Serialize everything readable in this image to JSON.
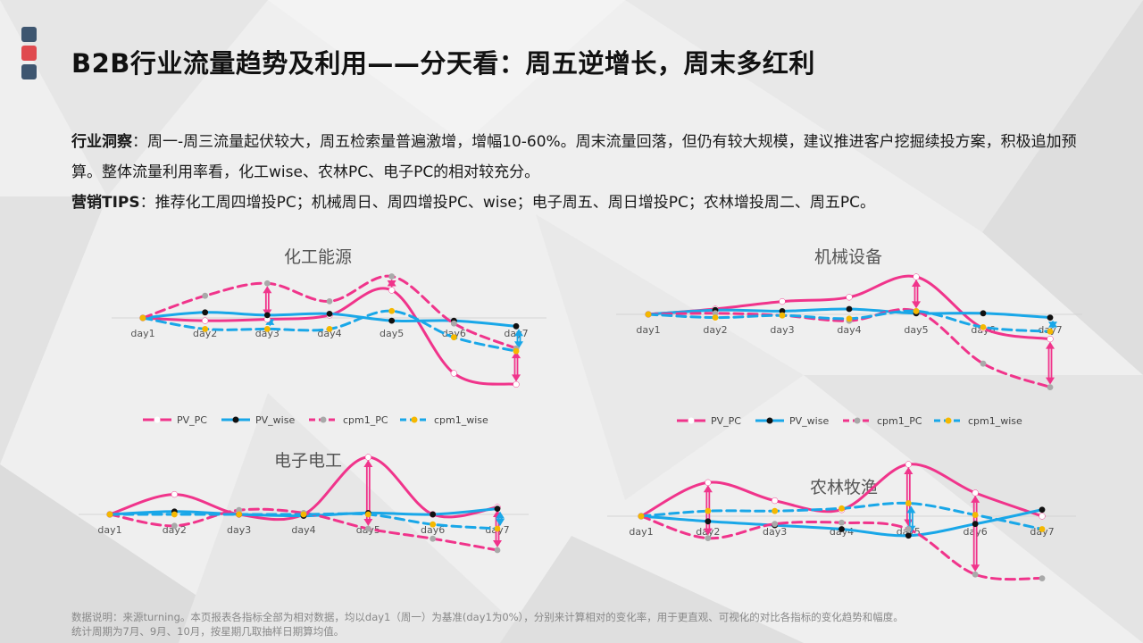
{
  "page": {
    "title": "B2B行业流量趋势及利用——分天看：周五逆增长，周末多红利",
    "logo_colors": [
      "#3e5670",
      "#e04a4f",
      "#3e5670"
    ]
  },
  "insight": {
    "label1": "行业洞察",
    "text1": "：周一-周三流量起伏较大，周五检索量普遍激增，增幅10-60%。周末流量回落，但仍有较大规模，建议推进客户挖掘续投方案，积极追加预算。整体流量利用率看，化工wise、农林PC、电子PC的相对较充分。",
    "label2": "营销TIPS",
    "text2": "：推荐化工周四增投PC；机械周日、周四增投PC、wise；电子周五、周日增投PC；农林增投周二、周五PC。"
  },
  "footnote": {
    "line1": "数据说明：来源turning。本页报表各指标全部为相对数据，均以day1（周一）为基准(day1为0%），分别来计算相对的变化率，用于更直观、可视化的对比各指标的变化趋势和幅度。",
    "line2": "统计周期为7月、9月、10月，按星期几取抽样日期算均值。"
  },
  "series_styles": [
    {
      "name": "PV_PC",
      "color": "#f0348b",
      "dash": false,
      "marker": "#ffffff"
    },
    {
      "name": "PV_wise",
      "color": "#19a7e8",
      "dash": false,
      "marker": "#111111"
    },
    {
      "name": "cpm1_PC",
      "color": "#f0348b",
      "dash": true,
      "marker": "#a9a9a9"
    },
    {
      "name": "cpm1_wise",
      "color": "#19a7e8",
      "dash": true,
      "marker": "#f5b800"
    }
  ],
  "chart_data": [
    {
      "type": "line",
      "title": "化工能源",
      "categories": [
        "day1",
        "day2",
        "day3",
        "day4",
        "day5",
        "day6",
        "day7"
      ],
      "legend_position": "bottom",
      "series": [
        {
          "name": "PV_PC",
          "values": [
            0,
            -2,
            -1,
            2,
            20,
            -40,
            -48
          ]
        },
        {
          "name": "PV_wise",
          "values": [
            0,
            4,
            2,
            3,
            -2,
            -2,
            -6
          ]
        },
        {
          "name": "cpm1_PC",
          "values": [
            0,
            16,
            25,
            12,
            30,
            -4,
            -22
          ]
        },
        {
          "name": "cpm1_wise",
          "values": [
            0,
            -8,
            -8,
            -8,
            5,
            -14,
            -24
          ]
        }
      ]
    },
    {
      "type": "line",
      "title": "机械设备",
      "categories": [
        "day1",
        "day2",
        "day3",
        "day4",
        "day5",
        "day6",
        "day7"
      ],
      "legend_position": "bottom",
      "series": [
        {
          "name": "PV_PC",
          "values": [
            0,
            5,
            12,
            16,
            35,
            -13,
            -23
          ]
        },
        {
          "name": "PV_wise",
          "values": [
            0,
            4,
            3,
            5,
            1,
            1,
            -3
          ]
        },
        {
          "name": "cpm1_PC",
          "values": [
            0,
            1,
            -1,
            -6,
            3,
            -46,
            -68
          ]
        },
        {
          "name": "cpm1_wise",
          "values": [
            0,
            -3,
            -1,
            -4,
            3,
            -12,
            -16
          ]
        }
      ]
    },
    {
      "type": "line",
      "title": "电子电工",
      "categories": [
        "day1",
        "day2",
        "day3",
        "day4",
        "day5",
        "day6",
        "day7"
      ],
      "legend_position": "none",
      "series": [
        {
          "name": "PV_PC",
          "values": [
            0,
            14,
            0,
            0,
            40,
            0,
            5
          ]
        },
        {
          "name": "PV_wise",
          "values": [
            0,
            2,
            0,
            -1,
            1,
            0,
            4
          ]
        },
        {
          "name": "cpm1_PC",
          "values": [
            0,
            -8,
            3,
            1,
            -10,
            -17,
            -25
          ]
        },
        {
          "name": "cpm1_wise",
          "values": [
            0,
            0,
            0,
            0,
            0,
            -7,
            -10
          ]
        }
      ]
    },
    {
      "type": "line",
      "title": "农林牧渔",
      "categories": [
        "day1",
        "day2",
        "day3",
        "day4",
        "day5",
        "day6",
        "day7"
      ],
      "legend_position": "none",
      "series": [
        {
          "name": "PV_PC",
          "values": [
            0,
            26,
            12,
            5,
            40,
            18,
            0
          ]
        },
        {
          "name": "PV_wise",
          "values": [
            0,
            -4,
            -7,
            -10,
            -15,
            -6,
            5
          ]
        },
        {
          "name": "cpm1_PC",
          "values": [
            0,
            -17,
            -6,
            -5,
            -10,
            -45,
            -48
          ]
        },
        {
          "name": "cpm1_wise",
          "values": [
            0,
            4,
            4,
            6,
            10,
            1,
            -10
          ]
        }
      ]
    }
  ]
}
